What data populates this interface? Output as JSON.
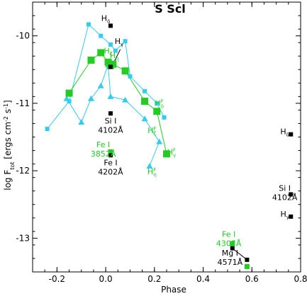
{
  "chart_data": {
    "type": "scatter",
    "title": "S Scl",
    "xlabel": "Phase",
    "ylabel_main": "log F",
    "ylabel_sub": "tot",
    "ylabel_units": "[ergs cm",
    "ylabel_exp": "-2",
    "ylabel_units2": " s",
    "ylabel_exp2": "-1",
    "ylabel_close": "]",
    "xlim": [
      -0.3,
      0.8
    ],
    "ylim": [
      -13.5,
      -9.5
    ],
    "x_ticks": [
      "-0.2",
      "0.0",
      "0.2",
      "0.4",
      "0.6",
      "0.8"
    ],
    "x_tick_values": [
      -0.2,
      0.0,
      0.2,
      0.4,
      0.6,
      0.8
    ],
    "y_ticks": [
      "-10",
      "-11",
      "-12",
      "-13"
    ],
    "y_tick_values": [
      -10,
      -11,
      -12,
      -13
    ],
    "colors": {
      "cyan": "#33ccee",
      "green": "#22cc22",
      "black": "#000000"
    },
    "series": [
      {
        "marker": "square-small",
        "color": "#33ccee",
        "connected": true,
        "points": [
          [
            -0.24,
            -11.38
          ],
          [
            -0.15,
            -10.97
          ],
          [
            -0.07,
            -9.83
          ],
          [
            -0.02,
            -10.0
          ],
          [
            0.02,
            -10.13
          ],
          [
            0.04,
            -10.22
          ],
          [
            0.08,
            -10.08
          ],
          [
            0.1,
            -10.6
          ],
          [
            0.16,
            -10.82
          ],
          [
            0.21,
            -11.0
          ],
          [
            0.24,
            -11.21
          ]
        ]
      },
      {
        "marker": "triangle",
        "color": "#33ccee",
        "connected": true,
        "points": [
          [
            -0.16,
            -10.93
          ],
          [
            -0.1,
            -11.28
          ],
          [
            -0.06,
            -10.93
          ],
          [
            -0.02,
            -10.74
          ],
          [
            0.01,
            -10.43
          ],
          [
            0.02,
            -10.9
          ],
          [
            0.08,
            -10.95
          ],
          [
            0.16,
            -11.23
          ],
          [
            0.22,
            -11.57
          ],
          [
            0.18,
            -11.93
          ]
        ]
      },
      {
        "marker": "square-large",
        "color": "#22cc22",
        "connected": true,
        "points": [
          [
            -0.15,
            -10.85
          ],
          [
            -0.06,
            -10.36
          ],
          [
            -0.02,
            -10.25
          ],
          [
            0.01,
            -10.39
          ],
          [
            0.02,
            -10.44
          ],
          [
            0.03,
            -10.42
          ],
          [
            0.08,
            -10.52
          ],
          [
            0.16,
            -10.97
          ],
          [
            0.21,
            -11.12
          ],
          [
            0.25,
            -11.75
          ]
        ]
      },
      {
        "marker": "square-medium",
        "color": "#22cc22",
        "connected": false,
        "points": [
          [
            0.02,
            -11.72
          ],
          [
            0.52,
            -13.08
          ],
          [
            0.58,
            -13.42
          ]
        ]
      },
      {
        "marker": "square-small",
        "color": "#000000",
        "connected": false,
        "points": [
          [
            0.02,
            -9.85
          ],
          [
            0.02,
            -10.46
          ],
          [
            0.02,
            -11.15
          ],
          [
            0.02,
            -11.77
          ],
          [
            0.52,
            -13.15
          ],
          [
            0.58,
            -13.32
          ],
          [
            0.76,
            -11.46
          ],
          [
            0.76,
            -12.35
          ],
          [
            0.76,
            -12.68
          ]
        ]
      }
    ],
    "connectors": [
      {
        "color": "#000000",
        "points": [
          [
            0.03,
            -10.42
          ],
          [
            0.06,
            -10.2
          ]
        ]
      },
      {
        "color": "#000000",
        "points": [
          [
            0.52,
            -13.15
          ],
          [
            0.58,
            -13.32
          ]
        ]
      }
    ],
    "annotations": [
      {
        "lines": [
          "H",
          "δ"
        ],
        "x": 0.0,
        "y": -9.78,
        "color": "#000000",
        "style": "sub"
      },
      {
        "lines": [
          "H",
          "γ"
        ],
        "x": 0.055,
        "y": -10.12,
        "color": "#000000",
        "style": "sub"
      },
      {
        "lines": [
          "H",
          "ζ"
        ],
        "x": 0.01,
        "y": -10.26,
        "color": "#22cc22",
        "style": "sub"
      },
      {
        "lines": [
          "H",
          "η"
        ],
        "x": 0.035,
        "y": -10.33,
        "color": "#22cc22",
        "style": "sub"
      },
      {
        "lines": [
          "H",
          "δ",
          "F"
        ],
        "x": 0.22,
        "y": -11.04,
        "color": "#22cc22",
        "style": "subsup"
      },
      {
        "lines": [
          "H",
          "ζ",
          "F"
        ],
        "x": 0.19,
        "y": -11.44,
        "color": "#22cc22",
        "style": "subsup"
      },
      {
        "lines": [
          "H",
          "γ",
          "F"
        ],
        "x": 0.27,
        "y": -11.76,
        "color": "#22cc22",
        "style": "subsup"
      },
      {
        "lines": [
          "H",
          "η",
          "F"
        ],
        "x": 0.19,
        "y": -12.05,
        "color": "#22cc22",
        "style": "subsup"
      },
      {
        "lines": [
          "Si I",
          "4102Å"
        ],
        "x": 0.02,
        "y": -11.3,
        "color": "#000000",
        "style": "block"
      },
      {
        "lines": [
          "Fe I",
          "3852Å"
        ],
        "x": -0.01,
        "y": -11.65,
        "color": "#22cc22",
        "style": "block"
      },
      {
        "lines": [
          "Fe I",
          "4202Å"
        ],
        "x": 0.02,
        "y": -11.92,
        "color": "#000000",
        "style": "block"
      },
      {
        "lines": [
          "Fe I",
          "4307Å"
        ],
        "x": 0.505,
        "y": -12.98,
        "color": "#22cc22",
        "style": "block"
      },
      {
        "lines": [
          "Mg I",
          "4571Å"
        ],
        "x": 0.51,
        "y": -13.26,
        "color": "#000000",
        "style": "block"
      },
      {
        "lines": [
          "H",
          "δ"
        ],
        "x": 0.735,
        "y": -11.46,
        "color": "#000000",
        "style": "sub"
      },
      {
        "lines": [
          "Si I",
          "4102Å"
        ],
        "x": 0.735,
        "y": -12.3,
        "color": "#000000",
        "style": "block"
      },
      {
        "lines": [
          "H",
          "γ"
        ],
        "x": 0.735,
        "y": -12.68,
        "color": "#000000",
        "style": "sub"
      }
    ]
  }
}
